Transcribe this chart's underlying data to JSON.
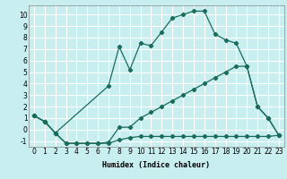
{
  "xlabel": "Humidex (Indice chaleur)",
  "bg_color": "#c8eef0",
  "grid_color": "#ffffff",
  "line_color": "#1a6b5a",
  "line1_x": [
    0,
    1,
    2,
    3,
    4,
    5,
    6,
    7,
    8,
    9,
    10,
    11,
    12,
    13,
    14,
    15,
    16,
    17,
    18,
    19,
    20,
    21,
    22,
    23
  ],
  "line1_y": [
    1.2,
    0.7,
    -0.3,
    -1.2,
    -1.2,
    -1.2,
    -1.2,
    -1.2,
    -0.9,
    -0.7,
    -0.6,
    -0.6,
    -0.6,
    -0.6,
    -0.6,
    -0.6,
    -0.6,
    -0.6,
    -0.6,
    -0.6,
    -0.6,
    -0.6,
    -0.6,
    -0.5
  ],
  "line2_x": [
    0,
    1,
    2,
    3,
    4,
    5,
    6,
    7,
    8,
    9,
    10,
    11,
    12,
    13,
    14,
    15,
    16,
    17,
    18,
    19,
    20,
    21,
    22,
    23
  ],
  "line2_y": [
    1.2,
    0.7,
    -0.3,
    -1.2,
    -1.2,
    -1.2,
    -1.2,
    -1.1,
    0.2,
    0.2,
    1.0,
    1.5,
    2.0,
    2.5,
    3.0,
    3.5,
    4.0,
    4.5,
    5.0,
    5.5,
    5.5,
    2.0,
    1.0,
    -0.5
  ],
  "line3_x": [
    0,
    1,
    2,
    7,
    8,
    9,
    10,
    11,
    12,
    13,
    14,
    15,
    16,
    17,
    18,
    19,
    20,
    21,
    22,
    23
  ],
  "line3_y": [
    1.2,
    0.7,
    -0.3,
    3.8,
    7.2,
    5.2,
    7.5,
    7.3,
    8.5,
    9.7,
    10.0,
    10.3,
    10.3,
    8.3,
    7.8,
    7.5,
    5.5,
    2.0,
    1.0,
    -0.5
  ],
  "xlim": [
    -0.5,
    23.5
  ],
  "ylim": [
    -1.5,
    10.8
  ],
  "yticks": [
    -1,
    0,
    1,
    2,
    3,
    4,
    5,
    6,
    7,
    8,
    9,
    10
  ],
  "xticks": [
    0,
    1,
    2,
    3,
    4,
    5,
    6,
    7,
    8,
    9,
    10,
    11,
    12,
    13,
    14,
    15,
    16,
    17,
    18,
    19,
    20,
    21,
    22,
    23
  ]
}
